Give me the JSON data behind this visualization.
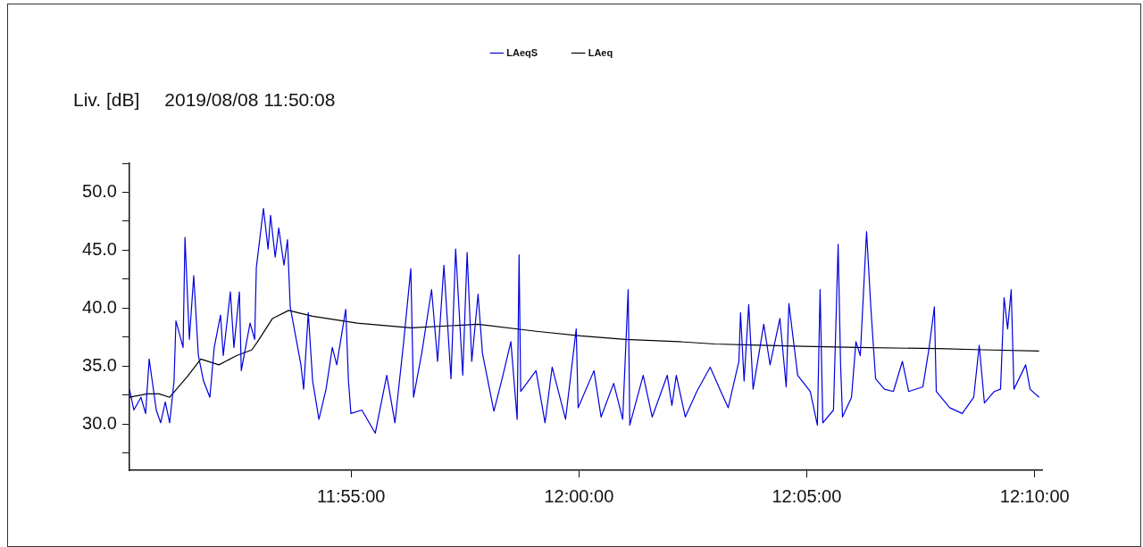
{
  "chart_data": {
    "type": "line",
    "subtitle": "2019/08/08 11:50:08",
    "ylabel": "Liv. [dB]",
    "legend": "top",
    "grid": false,
    "marker": "none",
    "line_style": "solid",
    "xlim": [
      11.8356,
      12.1694
    ],
    "xticks": [
      {
        "value": 11.9167,
        "label": "11:55:00"
      },
      {
        "value": 12,
        "label": "12:00:00"
      },
      {
        "value": 12.0833,
        "label": "12:05:00"
      },
      {
        "value": 12.1667,
        "label": "12:10:00"
      }
    ],
    "ylim": [
      26,
      52.5
    ],
    "yticks": [
      {
        "value": 27.5,
        "label": null
      },
      {
        "value": 30,
        "label": "30.0"
      },
      {
        "value": 32.5,
        "label": null
      },
      {
        "value": 35,
        "label": "35.0"
      },
      {
        "value": 37.5,
        "label": null
      },
      {
        "value": 40,
        "label": "40.0"
      },
      {
        "value": 42.5,
        "label": null
      },
      {
        "value": 45,
        "label": "45.0"
      },
      {
        "value": 47.5,
        "label": null
      },
      {
        "value": 50,
        "label": "50.0"
      },
      {
        "value": 52.5,
        "label": null
      }
    ],
    "series": [
      {
        "name": "LAeqS",
        "color": "#0000dd",
        "x": [
          11.8356,
          11.8372,
          11.8398,
          11.8415,
          11.8428,
          11.8454,
          11.847,
          11.8487,
          11.8503,
          11.8519,
          11.8526,
          11.8552,
          11.8559,
          11.8575,
          11.8591,
          11.8608,
          11.8627,
          11.865,
          11.8666,
          11.8689,
          11.8699,
          11.8725,
          11.8738,
          11.8758,
          11.8765,
          11.8797,
          11.8814,
          11.882,
          11.8846,
          11.8863,
          11.8872,
          11.8889,
          11.8902,
          11.8921,
          11.8934,
          11.8944,
          11.8983,
          11.8993,
          11.901,
          11.9026,
          11.9049,
          11.9075,
          11.9098,
          11.9114,
          11.9147,
          11.9157,
          11.9166,
          11.9206,
          11.9255,
          11.9297,
          11.9327,
          11.9359,
          11.9385,
          11.9395,
          11.9425,
          11.9461,
          11.9483,
          11.9506,
          11.9532,
          11.9549,
          11.9575,
          11.9591,
          11.9608,
          11.9631,
          11.9647,
          11.9689,
          11.9722,
          11.9751,
          11.9774,
          11.9781,
          11.9787,
          11.9843,
          11.9876,
          11.9902,
          11.9951,
          11.999,
          11.9997,
          12.0055,
          12.0081,
          12.0127,
          12.016,
          12.018,
          12.0186,
          12.0235,
          12.0268,
          12.0323,
          12.034,
          12.0356,
          12.0389,
          12.0431,
          12.048,
          12.0519,
          12.0546,
          12.0585,
          12.0591,
          12.0604,
          12.0621,
          12.0637,
          12.0676,
          12.0699,
          12.0735,
          12.0758,
          12.0768,
          12.08,
          12.0846,
          12.0872,
          12.0882,
          12.0892,
          12.0931,
          12.0948,
          12.0957,
          12.0964,
          12.0997,
          12.1013,
          12.1029,
          12.1052,
          12.1068,
          12.1085,
          12.1117,
          12.115,
          12.1183,
          12.1206,
          12.1258,
          12.1281,
          12.13,
          12.1307,
          12.1356,
          12.1402,
          12.1444,
          12.1464,
          12.1483,
          12.1519,
          12.1542,
          12.1555,
          12.1568,
          12.1581,
          12.1591,
          12.1634,
          12.165,
          12.1683
        ],
        "values": [
          33.0,
          31.2,
          32.3,
          30.9,
          35.6,
          31.2,
          30.1,
          31.9,
          30.1,
          33.7,
          38.9,
          36.6,
          46.1,
          37.3,
          42.8,
          35.9,
          33.7,
          32.3,
          36.6,
          39.4,
          35.9,
          41.4,
          36.6,
          41.4,
          34.6,
          38.7,
          37.3,
          43.5,
          48.6,
          45.1,
          48.0,
          44.4,
          46.9,
          43.7,
          45.9,
          40.1,
          35.1,
          33.0,
          39.6,
          33.7,
          30.4,
          33.0,
          36.6,
          35.1,
          39.9,
          33.7,
          30.9,
          31.2,
          29.2,
          34.2,
          30.1,
          37.1,
          43.4,
          32.3,
          36.1,
          41.6,
          35.4,
          43.7,
          33.9,
          45.1,
          34.2,
          44.8,
          35.4,
          41.2,
          36.1,
          31.1,
          34.2,
          37.1,
          30.4,
          44.6,
          32.8,
          34.6,
          30.1,
          34.9,
          30.4,
          38.2,
          31.4,
          34.6,
          30.6,
          33.5,
          30.4,
          41.6,
          29.9,
          34.2,
          30.6,
          34.2,
          31.6,
          34.2,
          30.6,
          32.8,
          34.9,
          32.8,
          31.4,
          35.4,
          39.6,
          33.7,
          40.3,
          33.0,
          38.6,
          35.1,
          39.1,
          33.2,
          40.4,
          34.2,
          32.8,
          29.9,
          41.6,
          30.1,
          31.2,
          45.5,
          35.1,
          30.6,
          32.3,
          37.1,
          35.9,
          46.6,
          39.9,
          33.9,
          33.0,
          32.8,
          35.4,
          32.8,
          33.2,
          36.6,
          40.1,
          32.8,
          31.4,
          30.9,
          32.3,
          36.8,
          31.8,
          32.8,
          33.0,
          40.9,
          38.2,
          41.6,
          33.0,
          35.1,
          33.0,
          32.3
        ]
      },
      {
        "name": "LAeq",
        "color": "#000000",
        "x": [
          11.8356,
          11.8421,
          11.8464,
          11.8503,
          11.8568,
          11.8617,
          11.8683,
          11.8748,
          11.8804,
          11.883,
          11.8879,
          11.8938,
          11.9026,
          11.9189,
          11.9385,
          11.9631,
          11.9843,
          12.0006,
          12.017,
          12.0366,
          12.0497,
          12.066,
          12.0823,
          12.1019,
          12.1314,
          12.1477,
          12.1683
        ],
        "values": [
          32.3,
          32.6,
          32.6,
          32.3,
          34.1,
          35.6,
          35.1,
          35.9,
          36.4,
          37.3,
          39.1,
          39.8,
          39.3,
          38.7,
          38.3,
          38.6,
          38.0,
          37.6,
          37.3,
          37.1,
          36.9,
          36.8,
          36.7,
          36.6,
          36.5,
          36.4,
          36.3
        ]
      }
    ]
  }
}
